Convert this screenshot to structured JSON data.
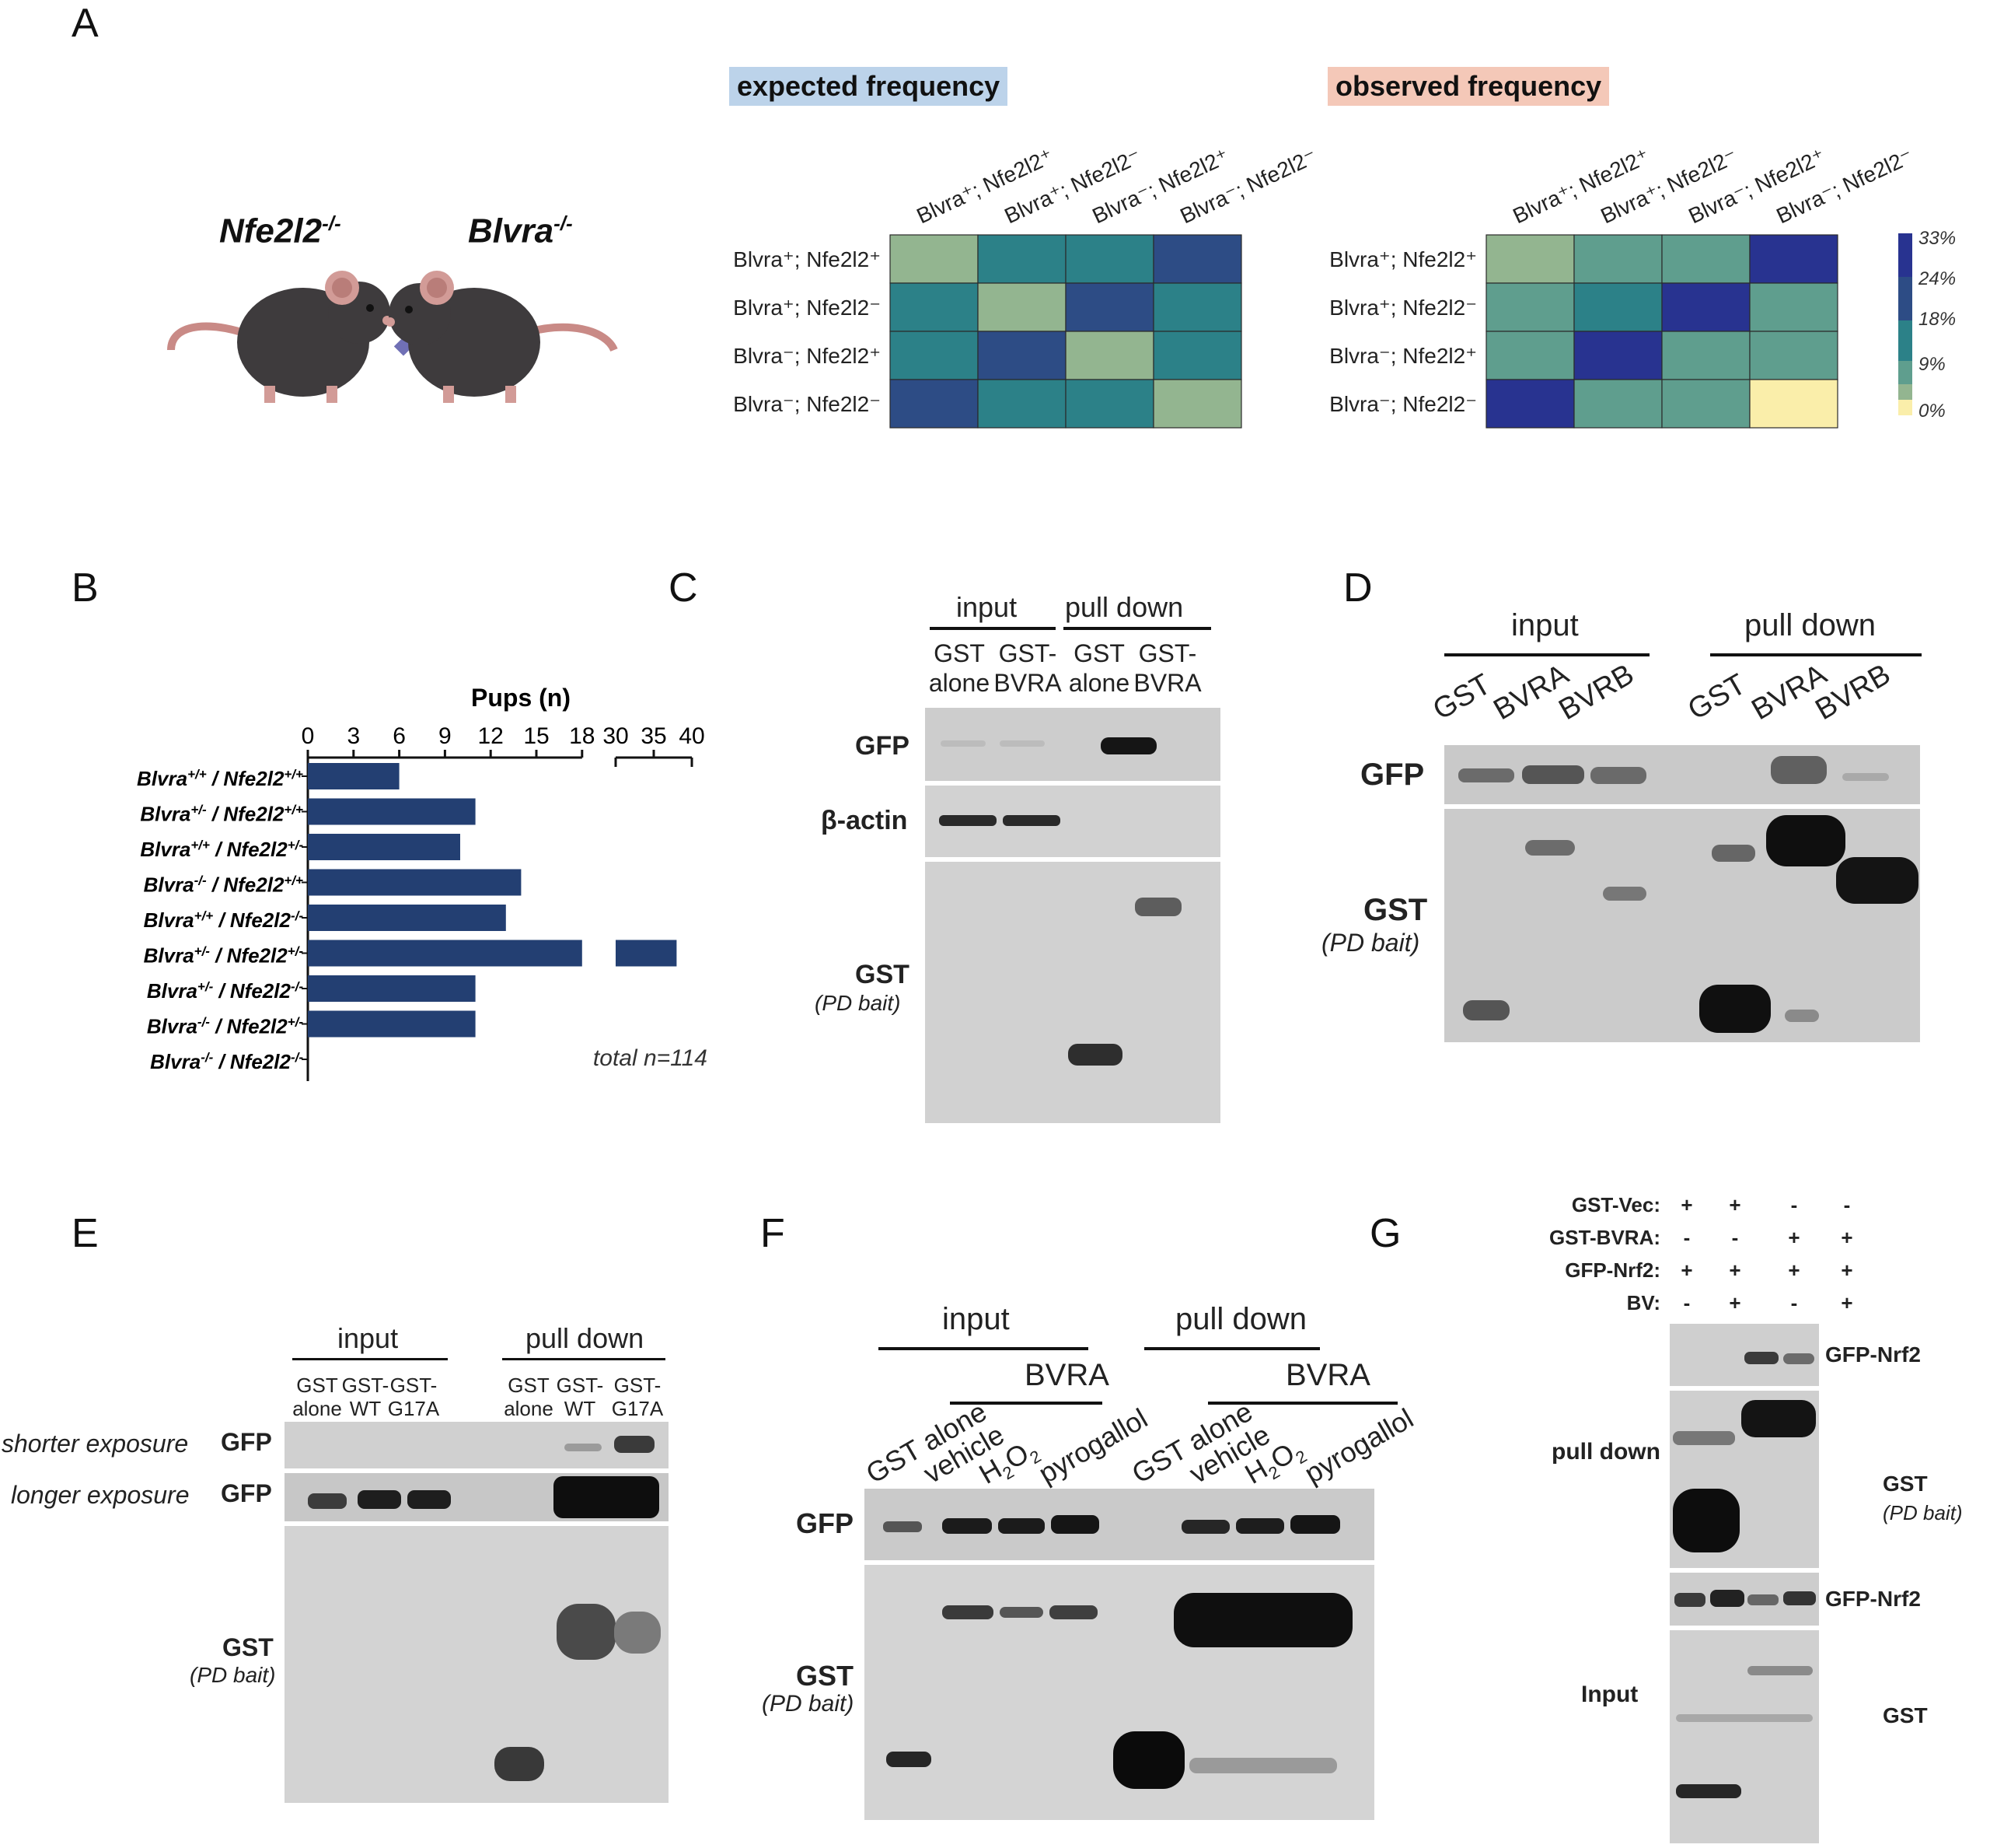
{
  "figure": {
    "panel_letters": [
      "A",
      "B",
      "C",
      "D",
      "E",
      "F",
      "G"
    ],
    "panel_a": {
      "mouse_left": "Nfe2l2",
      "mouse_left_sup": "-/-",
      "mouse_right": "Blvra",
      "mouse_right_sup": "-/-",
      "cross_symbol": "✖",
      "expected_title": "expected frequency",
      "observed_title": "observed frequency",
      "genotypes": [
        {
          "label": "Blvra⁺; Nfe2l2⁺"
        },
        {
          "label": "Blvra⁺; Nfe2l2⁻"
        },
        {
          "label": "Blvra⁻; Nfe2l2⁺"
        },
        {
          "label": "Blvra⁻; Nfe2l2⁻"
        }
      ],
      "colorbar_ticks": [
        "33%",
        "24%",
        "18%",
        "9%",
        "0%"
      ]
    },
    "panel_b": {
      "axis_title": "Pups (n)",
      "ticks_left": [
        "0",
        "3",
        "6",
        "9",
        "12",
        "15",
        "18"
      ],
      "ticks_right": [
        "30",
        "35",
        "40"
      ],
      "total": "total n=114",
      "rows": [
        {
          "a": "Blvra",
          "as": "+/+",
          "b": "Nfe2l2",
          "bs": "+/+"
        },
        {
          "a": "Blvra",
          "as": "+/-",
          "b": "Nfe2l2",
          "bs": "+/+"
        },
        {
          "a": "Blvra",
          "as": "+/+",
          "b": "Nfe2l2",
          "bs": "+/-"
        },
        {
          "a": "Blvra",
          "as": "-/-",
          "b": "Nfe2l2",
          "bs": "+/+"
        },
        {
          "a": "Blvra",
          "as": "+/+",
          "b": "Nfe2l2",
          "bs": "-/-"
        },
        {
          "a": "Blvra",
          "as": "+/-",
          "b": "Nfe2l2",
          "bs": "+/-"
        },
        {
          "a": "Blvra",
          "as": "+/-",
          "b": "Nfe2l2",
          "bs": "-/-"
        },
        {
          "a": "Blvra",
          "as": "-/-",
          "b": "Nfe2l2",
          "bs": "+/-"
        },
        {
          "a": "Blvra",
          "as": "-/-",
          "b": "Nfe2l2",
          "bs": "-/-"
        }
      ]
    },
    "panel_c": {
      "group_input": "input",
      "group_pulldown": "pull down",
      "lanes": [
        [
          "GST",
          "alone"
        ],
        [
          "GST-",
          "BVRA"
        ],
        [
          "GST",
          "alone"
        ],
        [
          "GST-",
          "BVRA"
        ]
      ],
      "row_gfp": "GFP",
      "row_actin": "β-actin",
      "row_gst": "GST",
      "row_gst_sub": "(PD bait)"
    },
    "panel_d": {
      "group_input": "input",
      "group_pulldown": "pull down",
      "lanes": [
        "GST",
        "BVRA",
        "BVRB",
        "GST",
        "BVRA",
        "BVRB"
      ],
      "row_gfp": "GFP",
      "row_gst": "GST",
      "row_gst_sub": "(PD bait)"
    },
    "panel_e": {
      "group_input": "input",
      "group_pulldown": "pull down",
      "lanes": [
        [
          "GST",
          "alone"
        ],
        [
          "GST-",
          "WT"
        ],
        [
          "GST-",
          "G17A"
        ],
        [
          "GST",
          "alone"
        ],
        [
          "GST-",
          "WT"
        ],
        [
          "GST-",
          "G17A"
        ]
      ],
      "shorter": "shorter exposure",
      "longer": "longer exposure",
      "row_gfp": "GFP",
      "row_gst": "GST",
      "row_gst_sub": "(PD bait)"
    },
    "panel_f": {
      "group_input": "input",
      "group_pulldown": "pull down",
      "bvra": "BVRA",
      "lanes": [
        "GST alone",
        "vehicle",
        "H2O2",
        "pyrogallol",
        "GST alone",
        "vehicle",
        "H2O2",
        "pyrogallol"
      ],
      "h2o2_h": "H",
      "h2o2_2a": "2",
      "h2o2_o": "O",
      "h2o2_2b": "2",
      "row_gfp": "GFP",
      "row_gst": "GST",
      "row_gst_sub": "(PD bait)"
    },
    "panel_g": {
      "conditions": [
        {
          "label": "GST-Vec:",
          "signs": [
            "+",
            "+",
            "-",
            "-"
          ]
        },
        {
          "label": "GST-BVRA:",
          "signs": [
            "-",
            "-",
            "+",
            "+"
          ]
        },
        {
          "label": "GFP-Nrf2:",
          "signs": [
            "+",
            "+",
            "+",
            "+"
          ]
        },
        {
          "label": "BV:",
          "signs": [
            "-",
            "+",
            "-",
            "+"
          ]
        }
      ],
      "pulldown": "pull down",
      "input": "Input",
      "row_gfp_nrf2": "GFP-Nrf2",
      "row_gst": "GST",
      "row_gst_sub": "(PD bait)",
      "row_gfp_nrf2_input": "GFP-Nrf2",
      "row_gst_input": "GST"
    }
  },
  "chart_data": [
    {
      "type": "heatmap",
      "title": "expected frequency",
      "rows": [
        "Blvra+; Nfe2l2+",
        "Blvra+; Nfe2l2-",
        "Blvra-; Nfe2l2+",
        "Blvra-; Nfe2l2-"
      ],
      "cols": [
        "Blvra+; Nfe2l2+",
        "Blvra+; Nfe2l2-",
        "Blvra-; Nfe2l2+",
        "Blvra-; Nfe2l2-"
      ],
      "values": [
        [
          6.25,
          12.5,
          12.5,
          25
        ],
        [
          12.5,
          6.25,
          25,
          12.5
        ],
        [
          12.5,
          25,
          6.25,
          12.5
        ],
        [
          25,
          12.5,
          12.5,
          6.25
        ]
      ],
      "units": "%",
      "colorbar_range": [
        0,
        33
      ]
    },
    {
      "type": "heatmap",
      "title": "observed frequency",
      "rows": [
        "Blvra+; Nfe2l2+",
        "Blvra+; Nfe2l2-",
        "Blvra-; Nfe2l2+",
        "Blvra-; Nfe2l2-"
      ],
      "cols": [
        "Blvra+; Nfe2l2+",
        "Blvra+; Nfe2l2-",
        "Blvra-; Nfe2l2+",
        "Blvra-; Nfe2l2-"
      ],
      "values": [
        [
          6,
          10,
          10,
          33
        ],
        [
          10,
          12,
          33,
          10
        ],
        [
          10,
          33,
          9,
          10
        ],
        [
          33,
          10,
          10,
          0
        ]
      ],
      "units": "%",
      "colorbar_range": [
        0,
        33
      ]
    },
    {
      "type": "bar",
      "orientation": "horizontal",
      "xlabel": "Pups (n)",
      "axis_break": [
        18,
        30
      ],
      "xlim": [
        0,
        40
      ],
      "categories": [
        "Blvra+/+ / Nfe2l2+/+",
        "Blvra+/- / Nfe2l2+/+",
        "Blvra+/+ / Nfe2l2+/-",
        "Blvra-/- / Nfe2l2+/+",
        "Blvra+/+ / Nfe2l2-/-",
        "Blvra+/- / Nfe2l2+/-",
        "Blvra+/- / Nfe2l2-/-",
        "Blvra-/- / Nfe2l2+/-",
        "Blvra-/- / Nfe2l2-/-"
      ],
      "values": [
        6,
        11,
        10,
        14,
        13,
        38,
        11,
        11,
        0
      ],
      "annotation": "total n=114"
    }
  ]
}
